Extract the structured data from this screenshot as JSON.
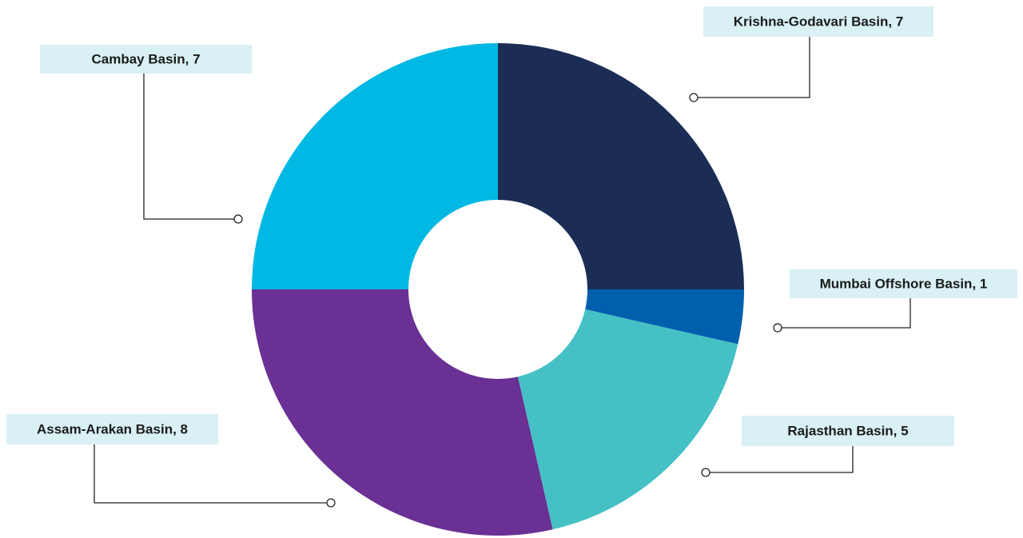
{
  "chart_data": {
    "type": "donut",
    "values": [
      7,
      1,
      5,
      8,
      7
    ],
    "value_labels": [
      "Krishna-Godavari Basin, 7",
      "Mumbai Offshore Basin, 1",
      "Rajasthan Basin, 5",
      "Assam-Arakan Basin, 8",
      "Cambay Basin, 7"
    ],
    "colors": [
      "#1b2d55",
      "#0060ad",
      "#45c1c5",
      "#6a3093",
      "#00b8e4"
    ]
  }
}
